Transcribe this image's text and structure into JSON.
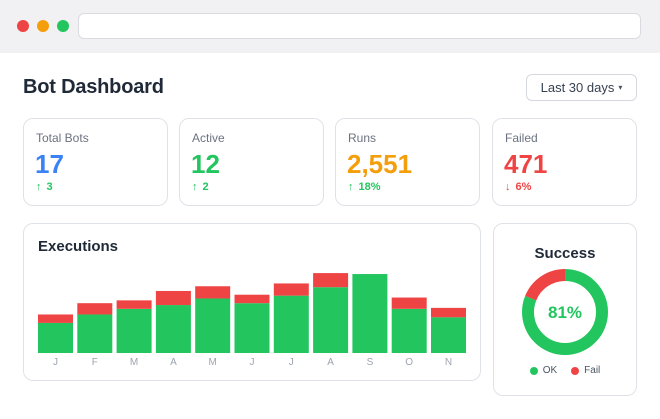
{
  "header": {
    "title": "Bot Dashboard",
    "range_label": "Last 30 days",
    "range_caret": "▾"
  },
  "kpis": [
    {
      "label": "Total Bots",
      "value": "17",
      "delta": "3",
      "direction": "up",
      "color": "#3b82f6"
    },
    {
      "label": "Active",
      "value": "12",
      "delta": "2",
      "direction": "up",
      "color": "#22c55e"
    },
    {
      "label": "Runs",
      "value": "2,551",
      "delta": "18%",
      "direction": "up",
      "color": "#f59e0b"
    },
    {
      "label": "Failed",
      "value": "471",
      "delta": "6%",
      "direction": "down",
      "color": "#ef4444"
    }
  ],
  "arrows": {
    "up": "↑",
    "down": "↓"
  },
  "colors": {
    "ok": "#22c55e",
    "fail": "#ef4444",
    "up": "#22c55e",
    "down": "#ef4444"
  },
  "executions": {
    "title": "Executions"
  },
  "success": {
    "title": "Success",
    "percent_label": "81%",
    "legend_ok": "OK",
    "legend_fail": "Fail"
  },
  "chart_data": [
    {
      "type": "bar",
      "stacked": true,
      "title": "Executions",
      "categories": [
        "J",
        "F",
        "M",
        "A",
        "M",
        "J",
        "J",
        "A",
        "S",
        "O",
        "N"
      ],
      "series": [
        {
          "name": "OK",
          "values": [
            32,
            41,
            47,
            51,
            58,
            53,
            61,
            70,
            84,
            47,
            38
          ]
        },
        {
          "name": "Fail",
          "values": [
            9,
            12,
            9,
            15,
            13,
            9,
            13,
            15,
            0,
            12,
            10
          ]
        }
      ],
      "ylim": [
        0,
        100
      ]
    },
    {
      "type": "pie",
      "title": "Success",
      "donut": true,
      "slices": [
        {
          "name": "OK",
          "value": 81
        },
        {
          "name": "Fail",
          "value": 19
        }
      ]
    }
  ]
}
